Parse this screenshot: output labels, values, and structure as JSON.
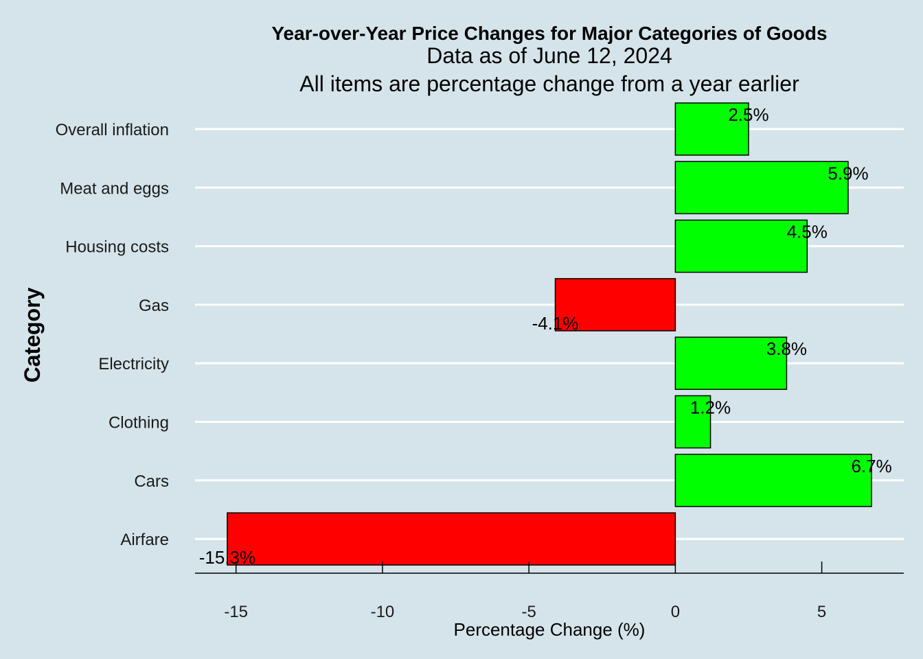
{
  "chart_data": {
    "type": "bar",
    "orientation": "horizontal",
    "title": "Year-over-Year Price Changes for Major Categories of Goods",
    "subtitle_lines": [
      "Data as of June 12, 2024",
      "All items are percentage change from a year earlier"
    ],
    "xlabel": "Percentage Change (%)",
    "ylabel": "Category",
    "categories": [
      "Overall inflation",
      "Meat and eggs",
      "Housing costs",
      "Gas",
      "Electricity",
      "Clothing",
      "Cars",
      "Airfare"
    ],
    "values": [
      2.5,
      5.9,
      4.5,
      -4.1,
      3.8,
      1.2,
      6.7,
      -15.3
    ],
    "value_labels": [
      "2.5%",
      "5.9%",
      "4.5%",
      "-4.1%",
      "3.8%",
      "1.2%",
      "6.7%",
      "-15.3%"
    ],
    "x_ticks": [
      -15,
      -10,
      -5,
      0,
      5
    ],
    "x_tick_labels": [
      "-15",
      "-10",
      "-5",
      "0",
      "5"
    ],
    "xlim": [
      -16.4,
      7.8
    ],
    "grid": "horizontal major lines",
    "legend": "none",
    "colors": {
      "positive": "#00ff00",
      "negative": "#ff0000",
      "background": "#d5e4ea",
      "grid": "#ffffff"
    }
  }
}
